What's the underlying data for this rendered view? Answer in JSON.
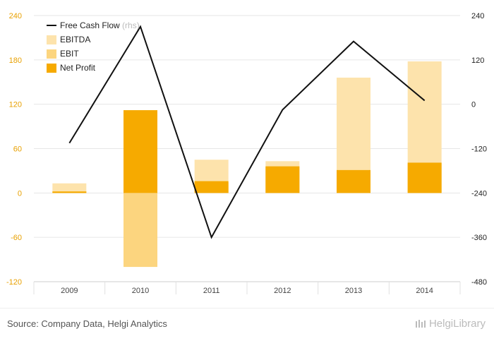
{
  "chart_data": {
    "type": "bar",
    "categories": [
      "2009",
      "2010",
      "2011",
      "2012",
      "2013",
      "2014"
    ],
    "series": [
      {
        "name": "EBITDA",
        "kind": "bar",
        "axis": "left",
        "color": "#fde3ac",
        "values": [
          13,
          -100,
          45,
          43,
          156,
          178
        ]
      },
      {
        "name": "EBIT",
        "kind": "bar",
        "axis": "left",
        "color": "#fcd57f",
        "values": [
          2,
          -100,
          14,
          36,
          30,
          40
        ]
      },
      {
        "name": "Net Profit",
        "kind": "bar",
        "axis": "left",
        "color": "#f6aa00",
        "values": [
          2,
          112,
          16,
          36,
          31,
          41
        ]
      },
      {
        "name": "Free Cash Flow",
        "kind": "line",
        "axis": "right",
        "color": "#111111",
        "values": [
          -105,
          210,
          -360,
          -15,
          170,
          10
        ]
      }
    ],
    "left_axis": {
      "ticks": [
        "240",
        "180",
        "120",
        "60",
        "0",
        "-60",
        "-120"
      ],
      "min": -120,
      "max": 240
    },
    "right_axis": {
      "ticks": [
        "240",
        "120",
        "0",
        "-120",
        "-240",
        "-360",
        "-480"
      ],
      "min": -480,
      "max": 240
    },
    "legend": {
      "position": "top-left",
      "items": [
        {
          "label": "Free Cash Flow",
          "suffix": "(rhs)",
          "kind": "line",
          "color": "#111111"
        },
        {
          "label": "EBITDA",
          "kind": "box",
          "color": "#fde3ac"
        },
        {
          "label": "EBIT",
          "kind": "box",
          "color": "#fcd57f"
        },
        {
          "label": "Net Profit",
          "kind": "box",
          "color": "#f6aa00"
        }
      ]
    }
  },
  "footer": {
    "source": "Source: Company Data, Helgi Analytics",
    "brand": "HelgiLibrary"
  }
}
